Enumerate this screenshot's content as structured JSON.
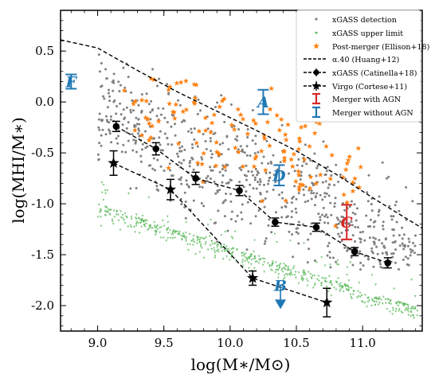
{
  "chart_data": {
    "type": "scatter",
    "xlabel": "log(M∗/M⊙)",
    "ylabel": "log(MHI/M∗)",
    "xlim": [
      8.72,
      11.45
    ],
    "ylim": [
      -2.25,
      0.9
    ],
    "x_ticks": [
      9.0,
      9.5,
      10.0,
      10.5,
      11.0
    ],
    "y_ticks": [
      0.5,
      0.0,
      -0.5,
      -1.0,
      -1.5,
      -2.0
    ],
    "x_tick_labels": [
      "9.0",
      "9.5",
      "10.0",
      "10.5",
      "11.0"
    ],
    "y_tick_labels": [
      "0.5",
      "0.0",
      "-0.5",
      "-1.0",
      "-1.5",
      "-2.0"
    ],
    "grid": false,
    "legend_position": "top-right",
    "legend": [
      "xGASS detection",
      "xGASS upper limit",
      "Post-merger (Ellison+18)",
      "α.40 (Huang+12)",
      "xGASS (Catinella+18)",
      "Virgo (Cortese+11)",
      "Merger with AGN",
      "Merger without AGN"
    ],
    "colors": {
      "detection": "#808080",
      "upper_limit": "#5cb85c",
      "post_merger": "#ff7f0e",
      "agn": "#d62728",
      "no_agn": "#1f77b4",
      "line": "#000000"
    },
    "series": [
      {
        "name": "xGASS detection",
        "kind": "scatter-cloud",
        "region": "9.0–11.4 in log M∗; gas fraction roughly from -1.6 to 0.6, decreasing with stellar mass",
        "points_shown": 700
      },
      {
        "name": "xGASS upper limit",
        "kind": "scatter-cloud",
        "region": "9.0–11.4 in log M∗; lower envelope from about -1.0 at 9.0 down to about -2.0 at 11.4",
        "points_shown": 550
      },
      {
        "name": "Post-merger (Ellison+18)",
        "kind": "scatter-cloud",
        "region": "9.2–11.0 in log M∗; gas fraction roughly -1.6 to 0.6",
        "points_shown": 130
      },
      {
        "name": "α.40 (Huang+12)",
        "kind": "dashed-line",
        "x": [
          8.72,
          9.0,
          9.3,
          9.6,
          9.9,
          10.2,
          10.5,
          10.8,
          11.1,
          11.45
        ],
        "y": [
          0.61,
          0.53,
          0.31,
          0.1,
          -0.09,
          -0.28,
          -0.48,
          -0.71,
          -0.96,
          -1.24
        ]
      },
      {
        "name": "xGASS (Catinella+18)",
        "kind": "binned-means",
        "x": [
          9.14,
          9.44,
          9.74,
          10.07,
          10.34,
          10.65,
          10.94,
          11.19
        ],
        "y": [
          -0.24,
          -0.46,
          -0.75,
          -0.87,
          -1.18,
          -1.23,
          -1.47,
          -1.58
        ],
        "err": [
          0.05,
          0.06,
          0.06,
          0.05,
          0.04,
          0.04,
          0.04,
          0.05
        ]
      },
      {
        "name": "Virgo (Cortese+11)",
        "kind": "binned-means",
        "x": [
          9.12,
          9.55,
          10.17,
          10.73
        ],
        "y": [
          -0.6,
          -0.86,
          -1.73,
          -1.97
        ],
        "err": [
          0.12,
          0.1,
          0.07,
          0.14
        ]
      }
    ],
    "mergers": [
      {
        "label": "A",
        "x": 10.25,
        "y": 0.0,
        "err": 0.12,
        "agn": false,
        "upper_limit": false
      },
      {
        "label": "B",
        "x": 10.38,
        "y": -1.8,
        "agn": false,
        "upper_limit": true
      },
      {
        "label": "C",
        "x": 10.88,
        "y": -1.18,
        "err": 0.17,
        "agn": true,
        "upper_limit": false
      },
      {
        "label": "D",
        "x": 10.37,
        "y": -0.72,
        "err": 0.1,
        "agn": false,
        "upper_limit": false
      },
      {
        "label": "F",
        "x": 8.8,
        "y": 0.2,
        "err": 0.07,
        "agn": false,
        "upper_limit": false
      }
    ]
  }
}
